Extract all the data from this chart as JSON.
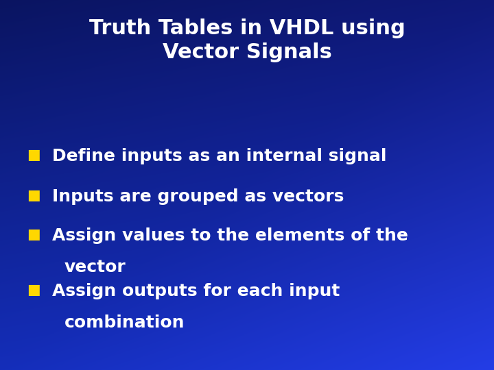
{
  "title_line1": "Truth Tables in VHDL using",
  "title_line2": "Vector Signals",
  "title_color": "#FFFFFF",
  "title_fontsize": 22,
  "bullet_color": "#FFD700",
  "text_color": "#FFFFFF",
  "bullet_fontsize": 18,
  "bullet_marker": "■",
  "bullet_items": [
    {
      "line1": "Define inputs as an internal signal",
      "line2": null
    },
    {
      "line1": "Inputs are grouped as vectors",
      "line2": null
    },
    {
      "line1": "Assign values to the elements of the",
      "line2": "vector"
    },
    {
      "line1": "Assign outputs for each input",
      "line2": "combination"
    }
  ],
  "bg_dark": "#0a1a6e",
  "bg_mid": "#1435b5",
  "bg_light": "#1a45cc",
  "fig_width": 7.2,
  "fig_height": 5.4,
  "dpi": 100
}
